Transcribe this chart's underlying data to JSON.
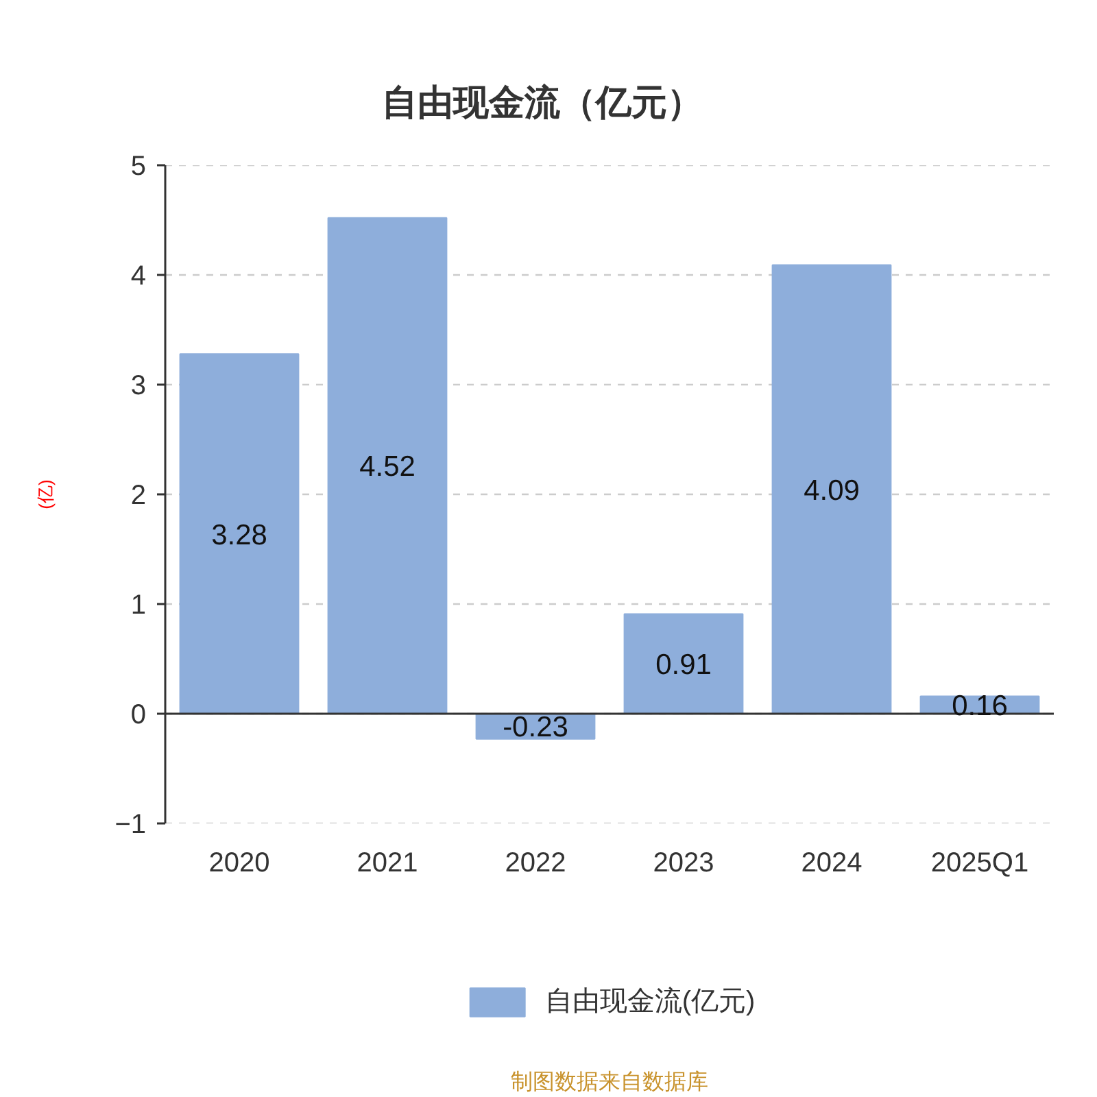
{
  "chart_data": {
    "type": "bar",
    "title": "自由现金流（亿元）",
    "ylabel": "(亿)",
    "categories": [
      "2020",
      "2021",
      "2022",
      "2023",
      "2024",
      "2025Q1"
    ],
    "series": [
      {
        "name": "自由现金流(亿元)",
        "color": "#8eaedb",
        "values": [
          3.28,
          4.52,
          -0.23,
          0.91,
          4.09,
          0.16
        ]
      }
    ],
    "ylim": [
      -1,
      5
    ],
    "yticks": [
      -1,
      0,
      1,
      2,
      3,
      4,
      5
    ],
    "grid": "y",
    "legend": "bottom",
    "data_labels": true,
    "annotations": [
      "制图数据来自数据库"
    ]
  }
}
